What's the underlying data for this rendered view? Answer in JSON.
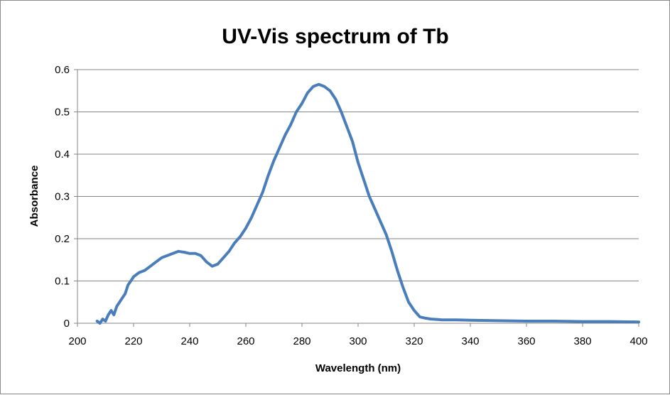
{
  "chart_data": {
    "type": "line",
    "title": "UV-Vis spectrum of Tb",
    "xlabel": "Wavelength (nm)",
    "ylabel": "Absorbance",
    "xlim": [
      200,
      400
    ],
    "ylim": [
      0,
      0.6
    ],
    "x_ticks": [
      200,
      220,
      240,
      260,
      280,
      300,
      320,
      340,
      360,
      380,
      400
    ],
    "y_ticks": [
      0,
      0.1,
      0.2,
      0.3,
      0.4,
      0.5,
      0.6
    ],
    "x_tick_labels": [
      "200",
      "220",
      "240",
      "260",
      "280",
      "300",
      "320",
      "340",
      "360",
      "380",
      "400"
    ],
    "y_tick_labels": [
      "0",
      "0.1",
      "0.2",
      "0.3",
      "0.4",
      "0.5",
      "0.6"
    ],
    "grid": "horizontal",
    "legend": "none",
    "series": [
      {
        "color": "#4a7ebb",
        "x": [
          207,
          208,
          209,
          210,
          211,
          212,
          213,
          214,
          215,
          216,
          217,
          218,
          219,
          220,
          221,
          222,
          224,
          226,
          228,
          230,
          232,
          234,
          236,
          238,
          240,
          242,
          244,
          246,
          248,
          250,
          252,
          254,
          256,
          258,
          260,
          262,
          264,
          266,
          268,
          270,
          272,
          274,
          276,
          278,
          280,
          282,
          284,
          286,
          288,
          290,
          292,
          294,
          296,
          298,
          300,
          302,
          304,
          306,
          308,
          310,
          312,
          314,
          316,
          318,
          320,
          322,
          324,
          326,
          328,
          330,
          335,
          340,
          350,
          360,
          370,
          380,
          390,
          400
        ],
        "y": [
          0.005,
          0.0,
          0.01,
          0.005,
          0.02,
          0.03,
          0.02,
          0.04,
          0.05,
          0.06,
          0.07,
          0.09,
          0.1,
          0.11,
          0.115,
          0.12,
          0.125,
          0.135,
          0.145,
          0.155,
          0.16,
          0.165,
          0.17,
          0.168,
          0.165,
          0.165,
          0.16,
          0.145,
          0.135,
          0.14,
          0.155,
          0.17,
          0.19,
          0.205,
          0.225,
          0.25,
          0.28,
          0.31,
          0.35,
          0.385,
          0.415,
          0.445,
          0.47,
          0.5,
          0.52,
          0.545,
          0.56,
          0.565,
          0.56,
          0.55,
          0.53,
          0.5,
          0.465,
          0.43,
          0.38,
          0.34,
          0.3,
          0.27,
          0.24,
          0.21,
          0.17,
          0.125,
          0.085,
          0.05,
          0.03,
          0.015,
          0.012,
          0.01,
          0.009,
          0.008,
          0.008,
          0.007,
          0.006,
          0.005,
          0.005,
          0.004,
          0.004,
          0.003
        ]
      }
    ]
  }
}
